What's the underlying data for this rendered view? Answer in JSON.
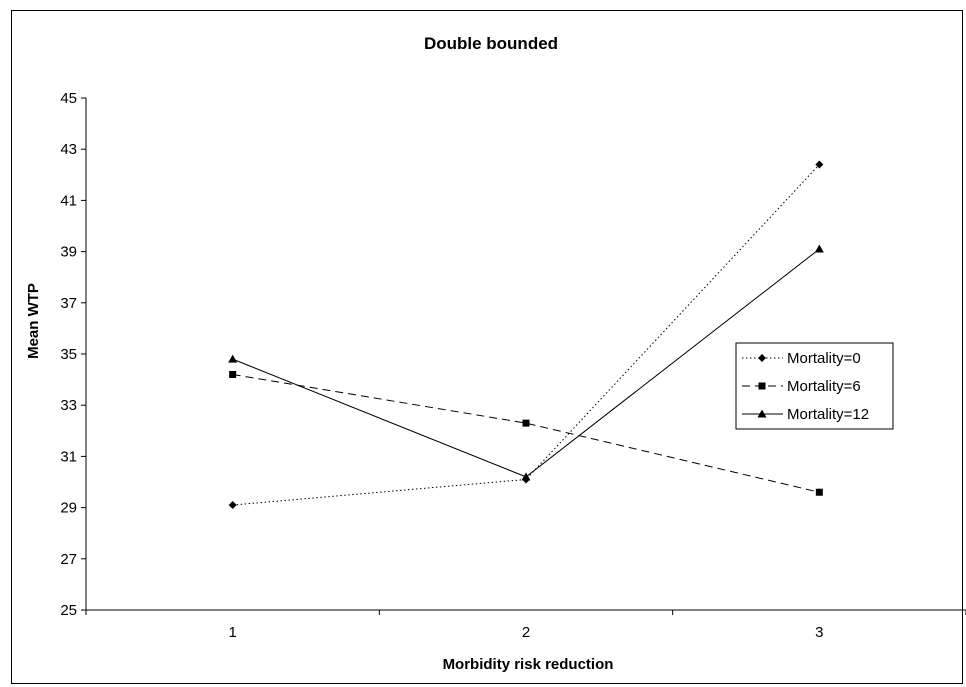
{
  "chart_data": {
    "type": "line",
    "title": "Double bounded",
    "xlabel": "Morbidity risk reduction",
    "ylabel": "Mean WTP",
    "categories": [
      "1",
      "2",
      "3"
    ],
    "ylim": [
      25,
      45
    ],
    "yticks": [
      "25",
      "27",
      "29",
      "31",
      "33",
      "35",
      "37",
      "39",
      "41",
      "43",
      "45"
    ],
    "grid": false,
    "legend_position": "right",
    "series": [
      {
        "name": "Mortality=0",
        "values": [
          29.1,
          30.1,
          42.4
        ],
        "marker": "diamond",
        "dash": "dotted",
        "color": "#000000"
      },
      {
        "name": "Mortality=6",
        "values": [
          34.2,
          32.3,
          29.6
        ],
        "marker": "square",
        "dash": "dashed",
        "color": "#000000"
      },
      {
        "name": "Mortality=12",
        "values": [
          34.8,
          30.2,
          39.1
        ],
        "marker": "triangle",
        "dash": "solid",
        "color": "#000000"
      }
    ]
  }
}
